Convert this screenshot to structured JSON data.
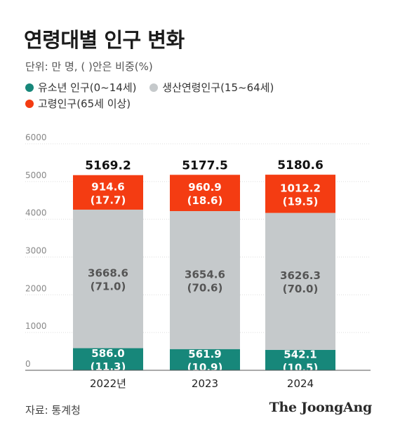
{
  "header": {
    "title": "연령대별 인구 변화",
    "unit_note": "단위: 만 명, ( )안은 비중(%)"
  },
  "legend": [
    {
      "name": "유소년 인구(0~14세)",
      "color": "#17877a"
    },
    {
      "name": "생산연령인구(15~64세)",
      "color": "#c5c9cb"
    },
    {
      "name": "고령인구(65세 이상)",
      "color": "#f43c12"
    }
  ],
  "chart_data": {
    "type": "bar",
    "stacked": true,
    "categories": [
      "2022년",
      "2023",
      "2024"
    ],
    "ylim": [
      0,
      6000
    ],
    "yticks": [
      "0",
      "1000",
      "2000",
      "3000",
      "4000",
      "5000",
      "6000"
    ],
    "grid": true,
    "totals": [
      "5169.2",
      "5177.5",
      "5180.6"
    ],
    "series": [
      {
        "name": "유소년 인구(0~14세)",
        "color": "#17877a",
        "values": [
          586.0,
          561.9,
          542.1
        ],
        "value_labels": [
          "586.0",
          "561.9",
          "542.1"
        ],
        "share_labels": [
          "(11.3)",
          "(10.9)",
          "(10.5)"
        ],
        "label_color": "#ffffff"
      },
      {
        "name": "생산연령인구(15~64세)",
        "color": "#c5c9cb",
        "values": [
          3668.6,
          3654.6,
          3626.3
        ],
        "value_labels": [
          "3668.6",
          "3654.6",
          "3626.3"
        ],
        "share_labels": [
          "(71.0)",
          "(70.6)",
          "(70.0)"
        ],
        "label_color": "#555555"
      },
      {
        "name": "고령인구(65세 이상)",
        "color": "#f43c12",
        "values": [
          914.6,
          960.9,
          1012.2
        ],
        "value_labels": [
          "914.6",
          "960.9",
          "1012.2"
        ],
        "share_labels": [
          "(17.7)",
          "(18.6)",
          "(19.5)"
        ],
        "label_color": "#ffffff"
      }
    ]
  },
  "footer": {
    "source": "자료: 통계청",
    "brand": "The JoongAng"
  }
}
